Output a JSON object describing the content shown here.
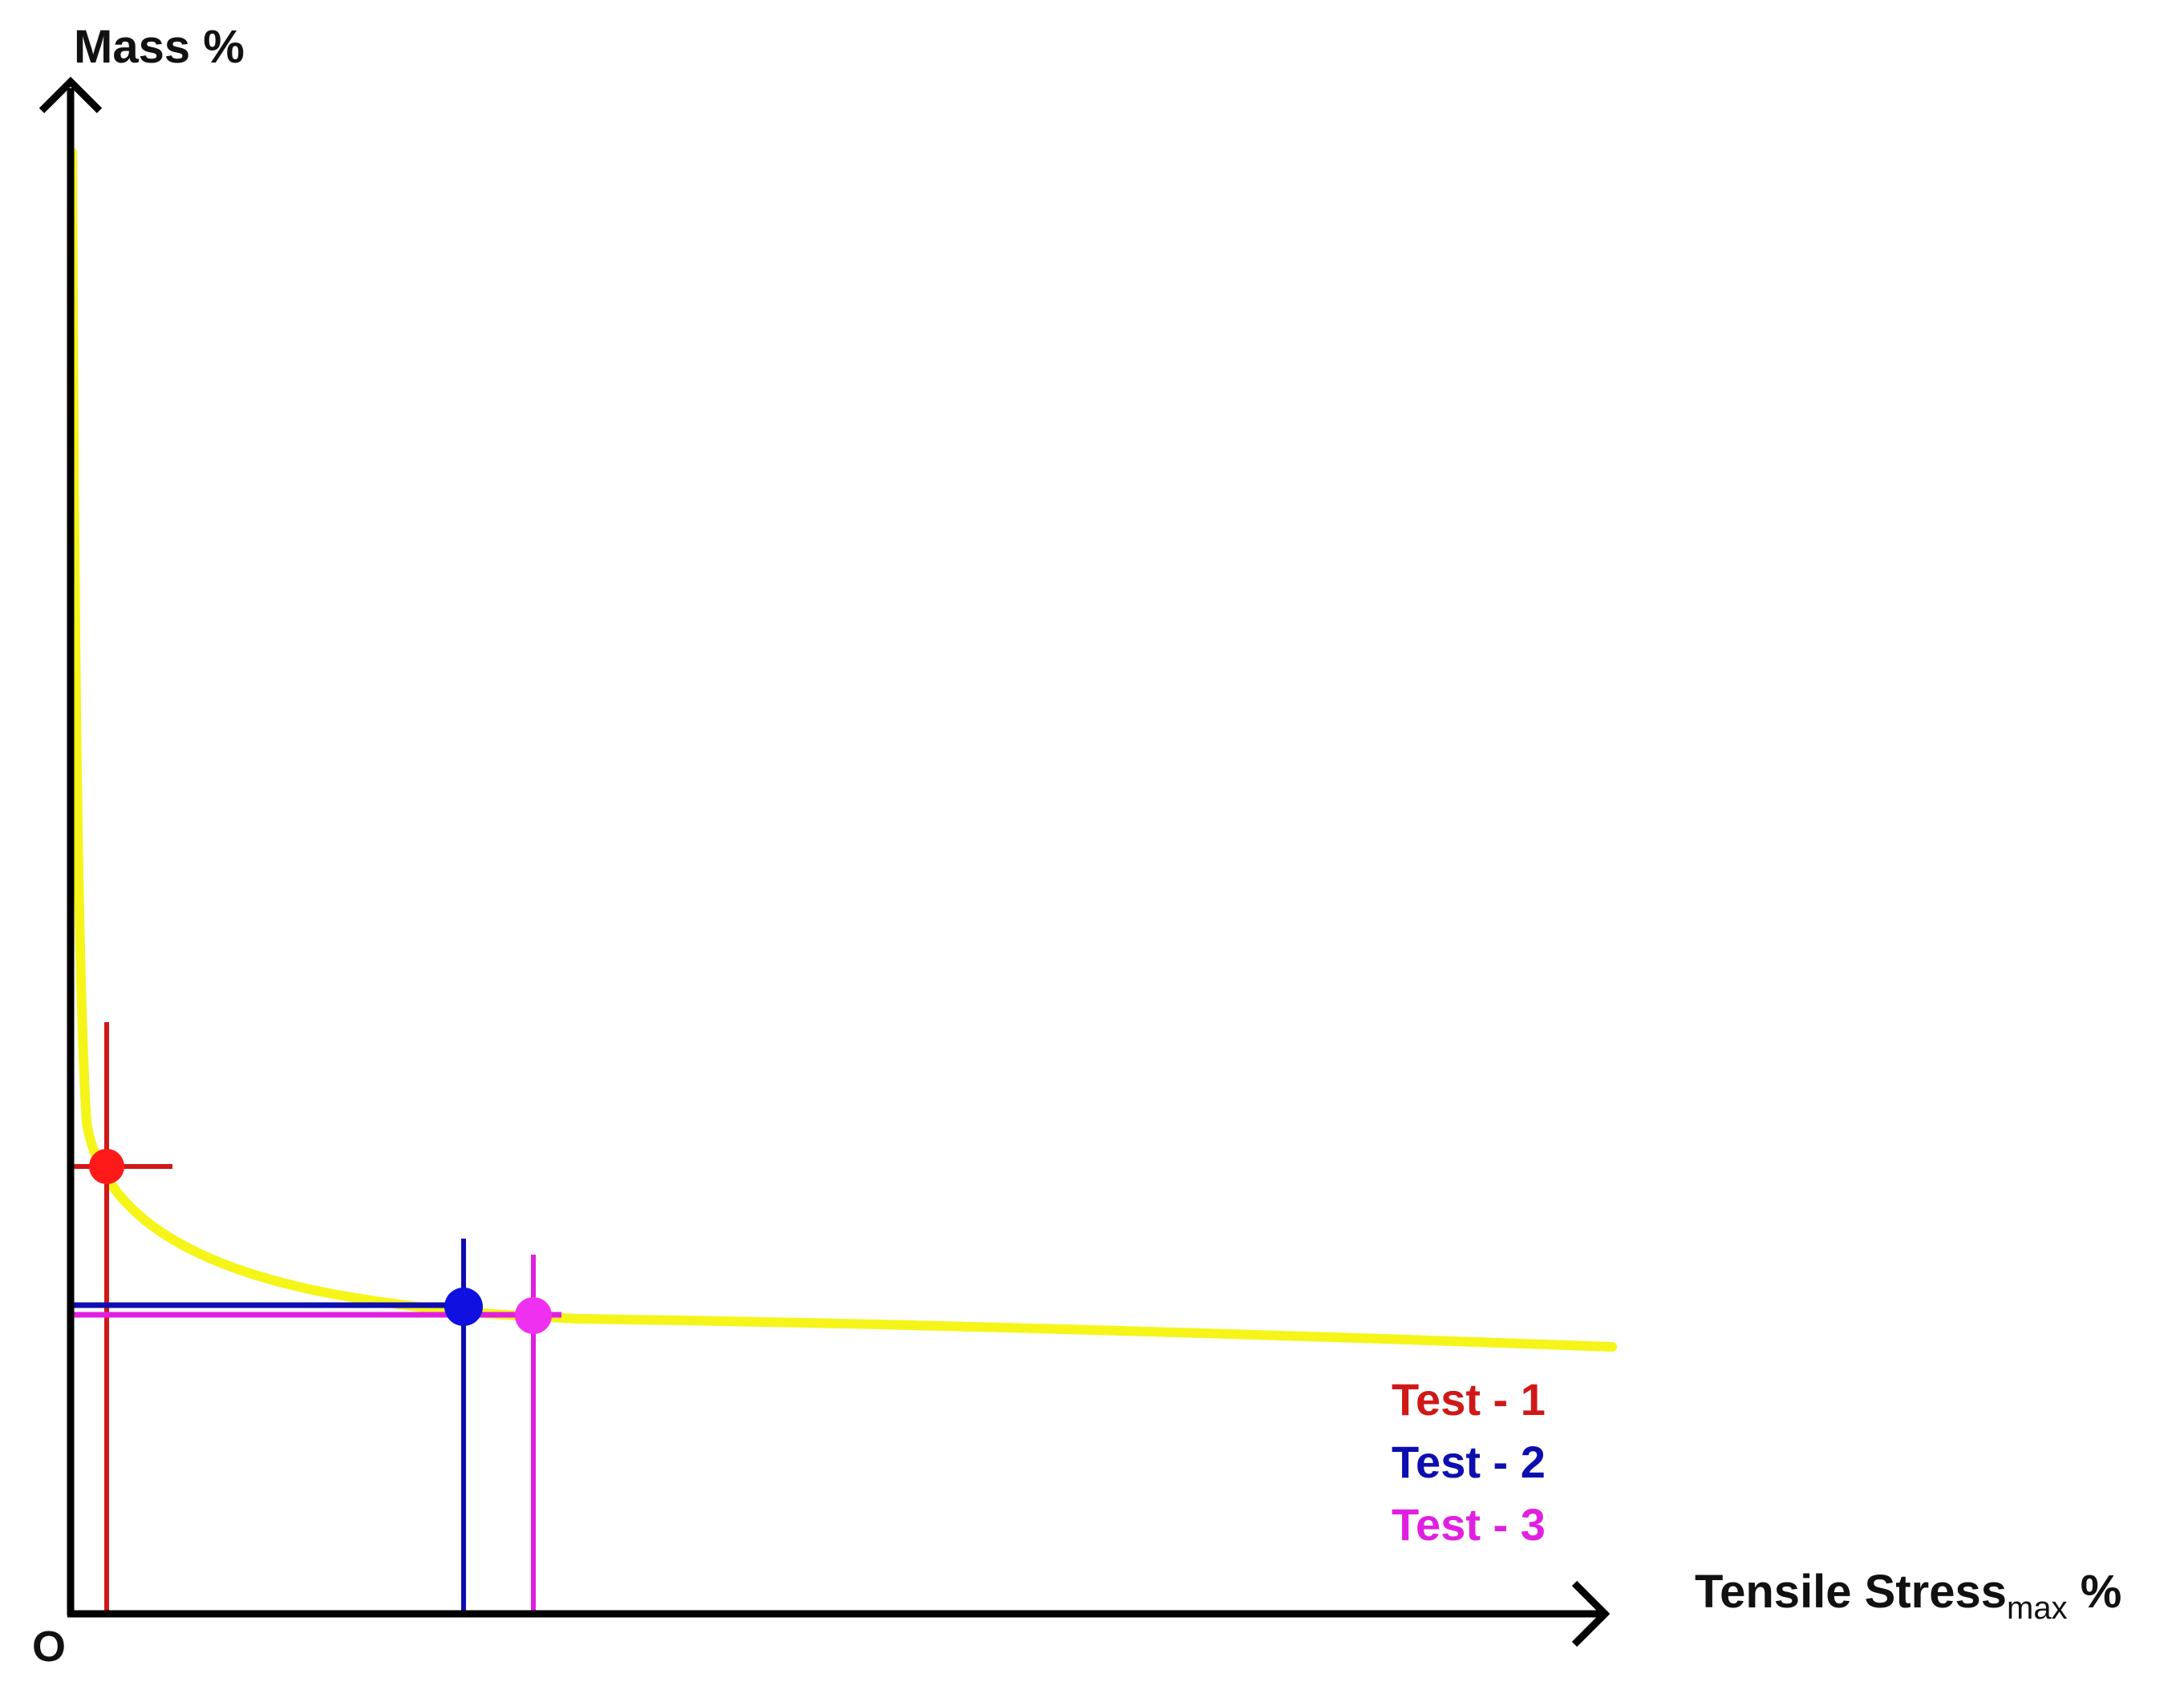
{
  "labels": {
    "y_axis": "Mass %",
    "x_axis_main": "Tensile Stress",
    "x_axis_sub": "max",
    "x_axis_unit": " %",
    "origin": "O"
  },
  "legend": [
    {
      "label": "Test - 1",
      "color": "#d01818"
    },
    {
      "label": "Test - 2",
      "color": "#0d0db0"
    },
    {
      "label": "Test - 3",
      "color": "#e020e0"
    }
  ],
  "colors": {
    "curve": "#f5f51a",
    "axis": "#000000",
    "test1": "#d01818",
    "test2": "#0d0db0",
    "test3": "#e020e0",
    "background": "#ffffff"
  }
}
